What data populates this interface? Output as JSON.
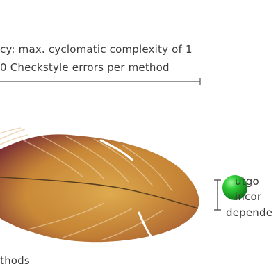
{
  "caption": {
    "line1": "cy: max. cyclomatic complexity of 1",
    "line2": "0 Checkstyle errors per method"
  },
  "label_bottom": "thods",
  "legend": {
    "line1": "utgo",
    "line2": "incor",
    "line3": "depende"
  },
  "colors": {
    "feather_base": "#c07a2a",
    "feather_edge": "#7a2a3a",
    "ball": "#22b02a",
    "text": "#3a3a3a"
  }
}
